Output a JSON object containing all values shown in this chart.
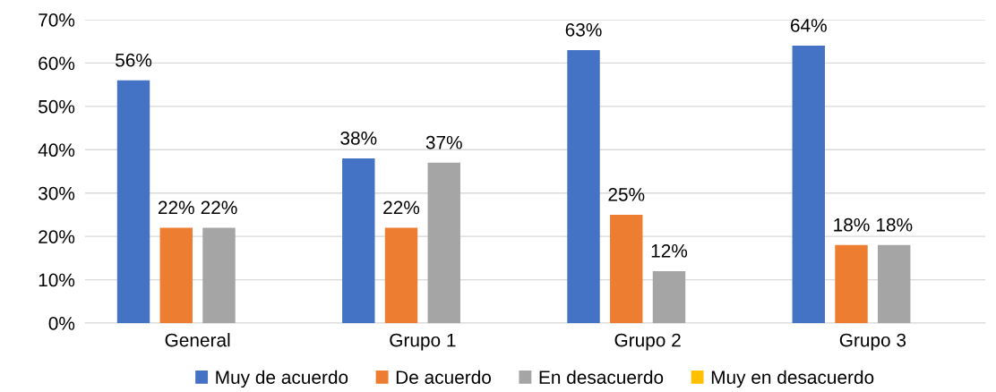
{
  "chart_data": {
    "type": "bar",
    "categories": [
      "General",
      "Grupo 1",
      "Grupo 2",
      "Grupo 3"
    ],
    "series": [
      {
        "name": "Muy de acuerdo",
        "color": "#4472c4",
        "values": [
          56,
          38,
          63,
          64
        ],
        "value_labels": [
          "56%",
          "38%",
          "63%",
          "64%"
        ]
      },
      {
        "name": "De acuerdo",
        "color": "#ed7d31",
        "values": [
          22,
          22,
          25,
          18
        ],
        "value_labels": [
          "22%",
          "22%",
          "25%",
          "18%"
        ]
      },
      {
        "name": "En desacuerdo",
        "color": "#a5a5a5",
        "values": [
          22,
          37,
          12,
          18
        ],
        "value_labels": [
          "22%",
          "37%",
          "12%",
          "18%"
        ]
      },
      {
        "name": "Muy en desacuerdo",
        "color": "#ffc000",
        "values": [
          0,
          0,
          0,
          0
        ],
        "value_labels": [
          null,
          null,
          null,
          null
        ]
      }
    ],
    "ylim": [
      0,
      70
    ],
    "yticks": [
      {
        "value": 0,
        "label": "0%"
      },
      {
        "value": 10,
        "label": "10%"
      },
      {
        "value": 20,
        "label": "20%"
      },
      {
        "value": 30,
        "label": "30%"
      },
      {
        "value": 40,
        "label": "40%"
      },
      {
        "value": 50,
        "label": "50%"
      },
      {
        "value": 60,
        "label": "60%"
      },
      {
        "value": 70,
        "label": "70%"
      }
    ],
    "grid": "y",
    "legend": "bottom"
  }
}
